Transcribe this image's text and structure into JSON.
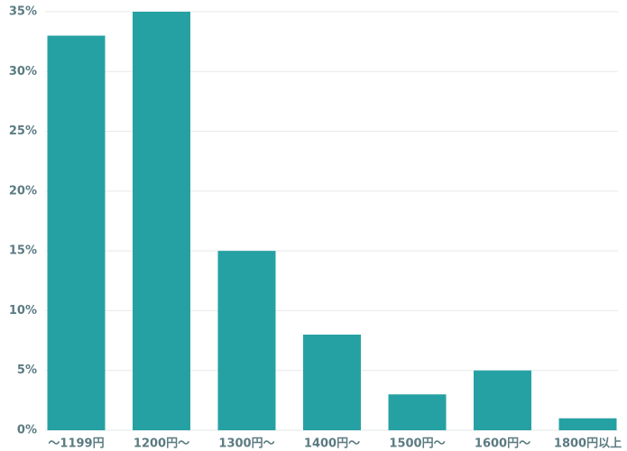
{
  "chart_data": {
    "type": "bar",
    "categories": [
      "〜1199円",
      "1200円〜",
      "1300円〜",
      "1400円〜",
      "1500円〜",
      "1600円〜",
      "1800円以上"
    ],
    "values": [
      33,
      35,
      15,
      8,
      3,
      5,
      1
    ],
    "color": "#26a1a3",
    "ylim": [
      0,
      35
    ],
    "yticks": [
      {
        "value": 0,
        "label": "0%"
      },
      {
        "value": 5,
        "label": "5%"
      },
      {
        "value": 10,
        "label": "10%"
      },
      {
        "value": 15,
        "label": "15%"
      },
      {
        "value": 20,
        "label": "20%"
      },
      {
        "value": 25,
        "label": "25%"
      },
      {
        "value": 30,
        "label": "30%"
      },
      {
        "value": 35,
        "label": "35%"
      }
    ],
    "grid": true
  }
}
